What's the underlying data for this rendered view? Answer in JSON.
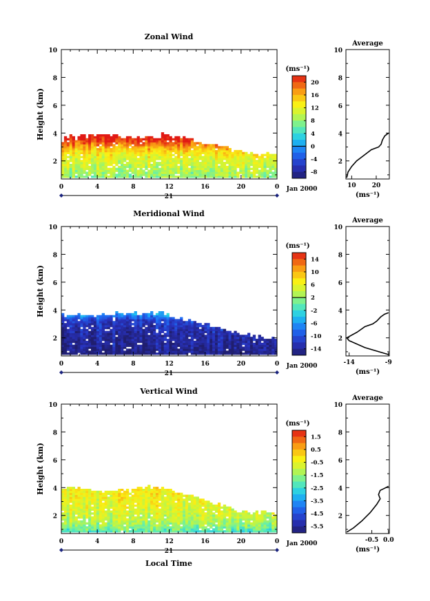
{
  "panels": [
    {
      "title": "Zonal Wind",
      "ylabel": "Height (km)",
      "yticks": [
        "2",
        "4",
        "6",
        "8",
        "10"
      ],
      "xticks": [
        "0",
        "4",
        "8",
        "12",
        "16",
        "20",
        "0"
      ],
      "date_label": "21",
      "month_label": "Jan 2000",
      "cbar_unit": "(ms⁻¹)",
      "cbar_ticks": [
        "20",
        "16",
        "12",
        "8",
        "4",
        "0",
        "-4",
        "-8"
      ],
      "avg_title": "Average",
      "avg_xticks": [
        "10",
        "20"
      ],
      "avg_xlabel": "(ms⁻¹)"
    },
    {
      "title": "Meridional Wind",
      "ylabel": "Height (km)",
      "yticks": [
        "2",
        "4",
        "6",
        "8",
        "10"
      ],
      "xticks": [
        "0",
        "4",
        "8",
        "12",
        "16",
        "20",
        "0"
      ],
      "date_label": "21",
      "month_label": "Jan 2000",
      "cbar_unit": "(ms⁻¹)",
      "cbar_ticks": [
        "14",
        "10",
        "6",
        "2",
        "-2",
        "-6",
        "-10",
        "-14"
      ],
      "avg_title": "Average",
      "avg_xticks": [
        "-14",
        "-9"
      ],
      "avg_xlabel": "(ms⁻¹)"
    },
    {
      "title": "Vertical Wind",
      "ylabel": "Height (km)",
      "yticks": [
        "2",
        "4",
        "6",
        "8",
        "10"
      ],
      "xticks": [
        "0",
        "4",
        "8",
        "12",
        "16",
        "20",
        "0"
      ],
      "date_label": "21",
      "month_label": "Jan 2000",
      "cbar_unit": "(ms⁻¹)",
      "cbar_ticks": [
        "1.5",
        "0.5",
        "-0.5",
        "-1.5",
        "-2.5",
        "-3.5",
        "-4.5",
        "-5.5"
      ],
      "avg_title": "Average",
      "avg_xticks": [
        "-0.5",
        "0.0"
      ],
      "avg_xlabel": "(ms⁻¹)"
    }
  ],
  "bottom_xlabel": "Local Time",
  "chart_data": [
    {
      "type": "heatmap",
      "title": "Zonal Wind",
      "xlabel": "",
      "ylabel": "Height (km)",
      "xlim": [
        0,
        24
      ],
      "ylim": [
        0.7,
        10
      ],
      "colorbar_range": [
        -10,
        22
      ],
      "colorbar_ticks": [
        20,
        16,
        12,
        8,
        4,
        0,
        -4,
        -8
      ],
      "colorbar_zero_line": 0,
      "top_height_km": [
        [
          0,
          3.3
        ],
        [
          0.5,
          3.7
        ],
        [
          3,
          3.8
        ],
        [
          6,
          3.7
        ],
        [
          9,
          3.6
        ],
        [
          11,
          3.6
        ],
        [
          11.3,
          4.0
        ],
        [
          12,
          3.7
        ],
        [
          14,
          3.6
        ],
        [
          15,
          3.3
        ],
        [
          17,
          3.1
        ],
        [
          19,
          2.8
        ],
        [
          21,
          2.5
        ],
        [
          24,
          2.4
        ]
      ],
      "value_profile": [
        [
          0.8,
          8
        ],
        [
          1.5,
          10
        ],
        [
          2.0,
          11
        ],
        [
          2.5,
          13
        ],
        [
          3.0,
          17
        ],
        [
          3.4,
          21
        ],
        [
          3.8,
          24
        ]
      ],
      "average_profile": {
        "height_km": [
          0.8,
          1.2,
          1.6,
          2.0,
          2.4,
          2.8,
          3.0,
          3.2,
          3.5,
          3.8,
          4.0
        ],
        "value": [
          8,
          8.5,
          10,
          12,
          15,
          18,
          21,
          22,
          22.5,
          23.5,
          25
        ]
      }
    },
    {
      "type": "heatmap",
      "title": "Meridional Wind",
      "xlabel": "",
      "ylabel": "Height (km)",
      "xlim": [
        0,
        24
      ],
      "ylim": [
        0.7,
        10
      ],
      "colorbar_range": [
        -16,
        16
      ],
      "colorbar_ticks": [
        14,
        10,
        6,
        2,
        -2,
        -6,
        -10,
        -14
      ],
      "colorbar_zero_line": 2,
      "top_height_km": [
        [
          0,
          3.6
        ],
        [
          2,
          3.6
        ],
        [
          3,
          3.5
        ],
        [
          5,
          3.7
        ],
        [
          9,
          3.7
        ],
        [
          11,
          3.8
        ],
        [
          12,
          3.6
        ],
        [
          14,
          3.2
        ],
        [
          16,
          2.9
        ],
        [
          18,
          2.6
        ],
        [
          20,
          2.3
        ],
        [
          22,
          2.0
        ],
        [
          24,
          1.9
        ]
      ],
      "value_profile": [
        [
          0.8,
          -15
        ],
        [
          1.5,
          -14
        ],
        [
          2.5,
          -13
        ],
        [
          3.2,
          -11
        ],
        [
          3.6,
          -6
        ]
      ],
      "average_profile": {
        "height_km": [
          0.8,
          1.3,
          1.8,
          2.0,
          2.4,
          2.8,
          3.0,
          3.2,
          3.5,
          3.7,
          3.8
        ],
        "value": [
          -9,
          -12,
          -14,
          -14.3,
          -13,
          -12,
          -11,
          -10.5,
          -10,
          -9.5,
          -9
        ]
      }
    },
    {
      "type": "heatmap",
      "title": "Vertical Wind",
      "xlabel": "Local Time",
      "ylabel": "Height (km)",
      "xlim": [
        0,
        24
      ],
      "ylim": [
        0.7,
        10
      ],
      "colorbar_range": [
        -6,
        2
      ],
      "colorbar_ticks": [
        1.5,
        0.5,
        -0.5,
        -1.5,
        -2.5,
        -3.5,
        -4.5,
        -5.5
      ],
      "top_height_km": [
        [
          0,
          3.9
        ],
        [
          3,
          3.9
        ],
        [
          4,
          3.7
        ],
        [
          8,
          3.8
        ],
        [
          9,
          3.9
        ],
        [
          11,
          4.0
        ],
        [
          12,
          3.8
        ],
        [
          14,
          3.5
        ],
        [
          16,
          3.1
        ],
        [
          18,
          2.6
        ],
        [
          20,
          2.2
        ],
        [
          24,
          2.1
        ]
      ],
      "value_profile": [
        [
          0.8,
          -2.2
        ],
        [
          1.3,
          -1.4
        ],
        [
          2.0,
          -0.9
        ],
        [
          3.0,
          -0.5
        ],
        [
          3.8,
          -0.4
        ]
      ],
      "average_profile": {
        "height_km": [
          0.8,
          1.1,
          1.6,
          2.2,
          2.8,
          3.2,
          3.5,
          3.8,
          3.95,
          4.1
        ],
        "value": [
          -1.25,
          -1.05,
          -0.8,
          -0.55,
          -0.35,
          -0.25,
          -0.3,
          -0.25,
          -0.12,
          0.0
        ]
      }
    }
  ]
}
